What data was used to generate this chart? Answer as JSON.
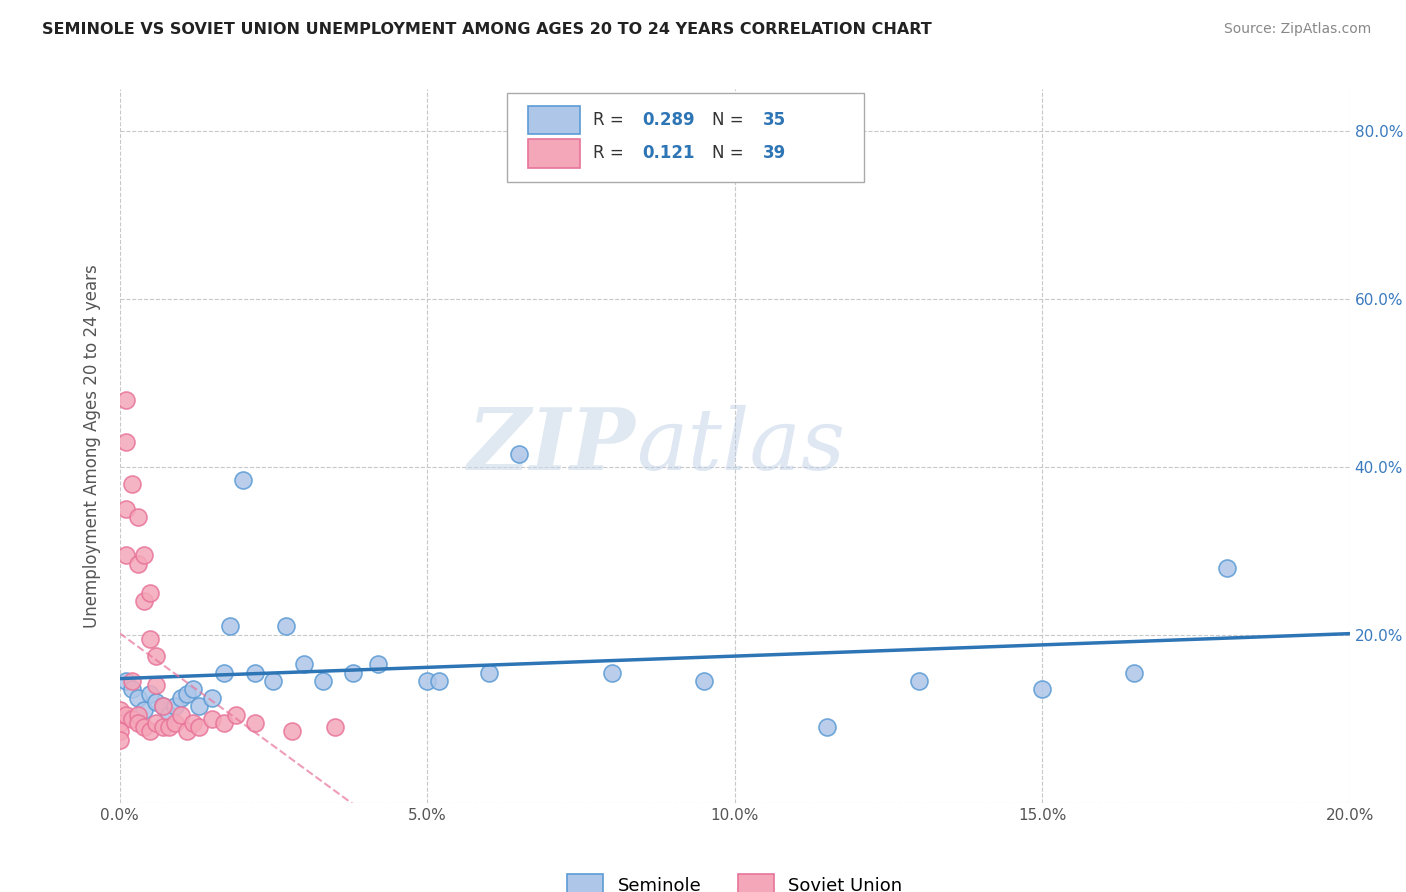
{
  "title": "SEMINOLE VS SOVIET UNION UNEMPLOYMENT AMONG AGES 20 TO 24 YEARS CORRELATION CHART",
  "source": "Source: ZipAtlas.com",
  "ylabel": "Unemployment Among Ages 20 to 24 years",
  "watermark_zip": "ZIP",
  "watermark_atlas": "atlas",
  "xlim": [
    0.0,
    0.2
  ],
  "ylim": [
    0.0,
    0.85
  ],
  "xticks": [
    0.0,
    0.05,
    0.1,
    0.15,
    0.2
  ],
  "yticks": [
    0.0,
    0.2,
    0.4,
    0.6,
    0.8
  ],
  "xtick_labels": [
    "0.0%",
    "5.0%",
    "10.0%",
    "15.0%",
    "20.0%"
  ],
  "ytick_labels": [
    "0.0%",
    "20.0%",
    "40.0%",
    "60.0%",
    "80.0%"
  ],
  "seminole_color": "#aec6e8",
  "soviet_color": "#f4a7b9",
  "seminole_edge": "#5b9bd5",
  "soviet_edge": "#e8749a",
  "trend_blue": "#2e75b6",
  "trend_pink": "#e8749a",
  "R_seminole": 0.289,
  "N_seminole": 35,
  "R_soviet": 0.121,
  "N_soviet": 39,
  "background": "#ffffff",
  "grid_color": "#c8c8c8",
  "seminole_x": [
    0.001,
    0.002,
    0.003,
    0.004,
    0.005,
    0.006,
    0.007,
    0.008,
    0.009,
    0.01,
    0.011,
    0.012,
    0.013,
    0.015,
    0.017,
    0.018,
    0.02,
    0.022,
    0.025,
    0.027,
    0.03,
    0.033,
    0.038,
    0.042,
    0.05,
    0.052,
    0.06,
    0.065,
    0.08,
    0.095,
    0.115,
    0.13,
    0.15,
    0.165,
    0.18
  ],
  "seminole_y": [
    0.145,
    0.135,
    0.125,
    0.11,
    0.13,
    0.12,
    0.115,
    0.105,
    0.115,
    0.125,
    0.13,
    0.135,
    0.115,
    0.125,
    0.155,
    0.21,
    0.385,
    0.155,
    0.145,
    0.21,
    0.165,
    0.145,
    0.155,
    0.165,
    0.145,
    0.145,
    0.155,
    0.415,
    0.155,
    0.145,
    0.09,
    0.145,
    0.135,
    0.155,
    0.28
  ],
  "soviet_x": [
    0.0,
    0.0,
    0.0,
    0.0,
    0.001,
    0.001,
    0.001,
    0.001,
    0.001,
    0.002,
    0.002,
    0.002,
    0.003,
    0.003,
    0.003,
    0.003,
    0.004,
    0.004,
    0.004,
    0.005,
    0.005,
    0.005,
    0.006,
    0.006,
    0.006,
    0.007,
    0.007,
    0.008,
    0.009,
    0.01,
    0.011,
    0.012,
    0.013,
    0.015,
    0.017,
    0.019,
    0.022,
    0.028,
    0.035
  ],
  "soviet_y": [
    0.11,
    0.095,
    0.085,
    0.075,
    0.48,
    0.43,
    0.35,
    0.295,
    0.105,
    0.38,
    0.145,
    0.1,
    0.34,
    0.285,
    0.105,
    0.095,
    0.295,
    0.24,
    0.09,
    0.25,
    0.195,
    0.085,
    0.175,
    0.14,
    0.095,
    0.115,
    0.09,
    0.09,
    0.095,
    0.105,
    0.085,
    0.095,
    0.09,
    0.1,
    0.095,
    0.105,
    0.095,
    0.085,
    0.09
  ]
}
